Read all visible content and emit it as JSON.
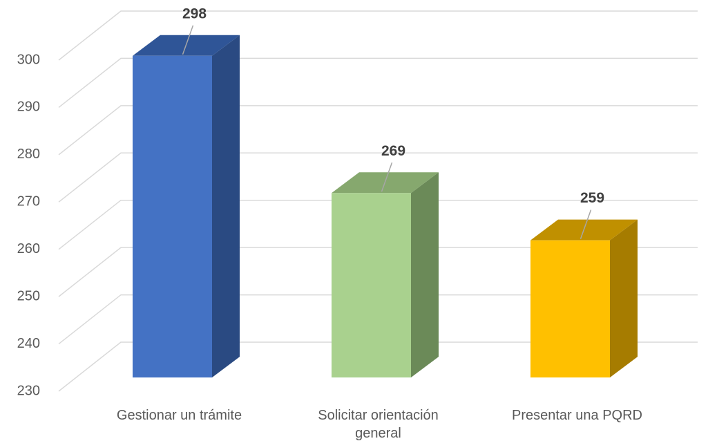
{
  "chart_data": {
    "type": "bar3d",
    "categories": [
      "Gestionar un trámite",
      "Solicitar orientación general",
      "Presentar una PQRD"
    ],
    "values": [
      298,
      269,
      259
    ],
    "colors": [
      "#4472c4",
      "#a9d18e",
      "#ffc000"
    ],
    "side_colors": [
      "#2a4a82",
      "#6b8a58",
      "#a67c00"
    ],
    "top_colors": [
      "#2f5597",
      "#86a86e",
      "#c09000"
    ],
    "ylim": [
      230,
      300
    ],
    "yticks": [
      230,
      240,
      250,
      260,
      270,
      280,
      290,
      300
    ],
    "grid": true
  }
}
